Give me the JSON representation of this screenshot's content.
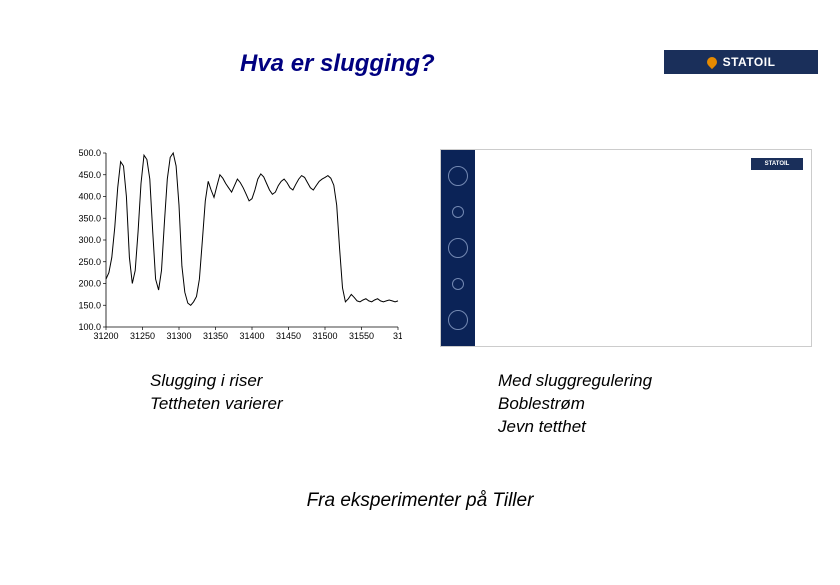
{
  "title": "Hva er slugging?",
  "logo_text": "STATOIL",
  "chart_left": {
    "type": "line",
    "ylim": [
      100,
      500
    ],
    "ytick_step": 50,
    "yticks": [
      "100.0",
      "150.0",
      "200.0",
      "250.0",
      "300.0",
      "350.0",
      "400.0",
      "450.0",
      "500.0"
    ],
    "xlim": [
      31200,
      31600
    ],
    "xticks": [
      "31200",
      "31250",
      "31300",
      "31350",
      "31400",
      "31450",
      "31500",
      "31550",
      "31"
    ],
    "line_color": "#000000",
    "background_color": "#ffffff",
    "line_width": 1,
    "series": [
      [
        31200,
        210
      ],
      [
        31204,
        225
      ],
      [
        31208,
        260
      ],
      [
        31212,
        330
      ],
      [
        31216,
        420
      ],
      [
        31220,
        480
      ],
      [
        31224,
        470
      ],
      [
        31228,
        400
      ],
      [
        31232,
        260
      ],
      [
        31236,
        200
      ],
      [
        31240,
        230
      ],
      [
        31244,
        320
      ],
      [
        31248,
        430
      ],
      [
        31252,
        495
      ],
      [
        31256,
        485
      ],
      [
        31260,
        440
      ],
      [
        31264,
        320
      ],
      [
        31268,
        210
      ],
      [
        31272,
        185
      ],
      [
        31276,
        230
      ],
      [
        31280,
        340
      ],
      [
        31284,
        440
      ],
      [
        31288,
        490
      ],
      [
        31292,
        500
      ],
      [
        31296,
        470
      ],
      [
        31300,
        380
      ],
      [
        31304,
        240
      ],
      [
        31308,
        180
      ],
      [
        31312,
        155
      ],
      [
        31316,
        150
      ],
      [
        31320,
        158
      ],
      [
        31324,
        170
      ],
      [
        31328,
        210
      ],
      [
        31332,
        300
      ],
      [
        31336,
        390
      ],
      [
        31340,
        435
      ],
      [
        31344,
        415
      ],
      [
        31348,
        398
      ],
      [
        31352,
        425
      ],
      [
        31356,
        450
      ],
      [
        31360,
        442
      ],
      [
        31364,
        430
      ],
      [
        31368,
        420
      ],
      [
        31372,
        410
      ],
      [
        31376,
        425
      ],
      [
        31380,
        440
      ],
      [
        31384,
        432
      ],
      [
        31388,
        420
      ],
      [
        31392,
        405
      ],
      [
        31396,
        390
      ],
      [
        31400,
        395
      ],
      [
        31404,
        415
      ],
      [
        31408,
        440
      ],
      [
        31412,
        452
      ],
      [
        31416,
        445
      ],
      [
        31420,
        430
      ],
      [
        31424,
        415
      ],
      [
        31428,
        405
      ],
      [
        31432,
        410
      ],
      [
        31436,
        425
      ],
      [
        31440,
        435
      ],
      [
        31444,
        440
      ],
      [
        31448,
        432
      ],
      [
        31452,
        420
      ],
      [
        31456,
        415
      ],
      [
        31460,
        428
      ],
      [
        31464,
        440
      ],
      [
        31468,
        448
      ],
      [
        31472,
        444
      ],
      [
        31476,
        432
      ],
      [
        31480,
        420
      ],
      [
        31484,
        415
      ],
      [
        31488,
        425
      ],
      [
        31492,
        435
      ],
      [
        31496,
        440
      ],
      [
        31500,
        444
      ],
      [
        31504,
        448
      ],
      [
        31508,
        442
      ],
      [
        31512,
        426
      ],
      [
        31516,
        380
      ],
      [
        31520,
        280
      ],
      [
        31524,
        190
      ],
      [
        31528,
        158
      ],
      [
        31532,
        165
      ],
      [
        31536,
        175
      ],
      [
        31540,
        168
      ],
      [
        31544,
        160
      ],
      [
        31548,
        158
      ],
      [
        31552,
        162
      ],
      [
        31556,
        165
      ],
      [
        31560,
        160
      ],
      [
        31564,
        158
      ],
      [
        31568,
        162
      ],
      [
        31572,
        165
      ],
      [
        31576,
        160
      ],
      [
        31580,
        158
      ],
      [
        31584,
        160
      ],
      [
        31588,
        162
      ],
      [
        31592,
        160
      ],
      [
        31596,
        158
      ],
      [
        31600,
        160
      ]
    ]
  },
  "caption_left": {
    "line1": "Slugging i riser",
    "line2": "Tettheten varierer"
  },
  "caption_right": {
    "line1": "Med sluggregulering",
    "line2": "Boblestrøm",
    "line3": "Jevn tetthet"
  },
  "footer": "Fra eksperimenter på Tiller",
  "colors": {
    "title": "#000080",
    "body_text": "#000000",
    "logo_bg": "#1a2f5a",
    "logo_accent": "#e68a00",
    "strip_bg": "#0b2357",
    "strip_bubble_border": "#9fb3d9"
  },
  "typography": {
    "title_fontsize": 24,
    "title_weight": "bold",
    "title_style": "italic",
    "caption_fontsize": 17,
    "caption_style": "italic",
    "footer_fontsize": 19,
    "footer_style": "italic",
    "tick_fontsize": 9
  }
}
